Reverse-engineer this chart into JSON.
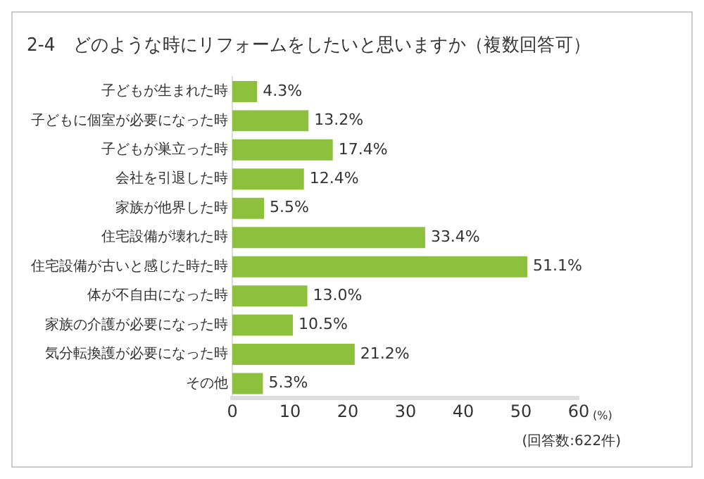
{
  "chart_data": {
    "type": "bar",
    "orientation": "horizontal",
    "title": "2-4　どのような時にリフォームをしたいと思いますか（複数回答可）",
    "xlabel": "(%)",
    "categories": [
      "子どもが生まれた時",
      "子どもに個室が必要になった時",
      "子どもが巣立った時",
      "会社を引退した時",
      "家族が他界した時",
      "住宅設備が壊れた時",
      "住宅設備が古いと感じた時た時",
      "体が不自由になった時",
      "家族の介護が必要になった時",
      "気分転換護が必要になった時",
      "その他"
    ],
    "values": [
      4.3,
      13.2,
      17.4,
      12.4,
      5.5,
      33.4,
      51.1,
      13.0,
      10.5,
      21.2,
      5.3
    ],
    "value_labels": [
      "4.3%",
      "13.2%",
      "17.4%",
      "12.4%",
      "5.5%",
      "33.4%",
      "51.1%",
      "13.0%",
      "10.5%",
      "21.2%",
      "5.3%"
    ],
    "color": "#8dc03c",
    "xlim": [
      0,
      60
    ],
    "xticks": [
      0,
      10,
      20,
      30,
      40,
      50,
      60
    ],
    "grid": false,
    "legend": false,
    "annotations": [
      "(回答数:622件)"
    ]
  }
}
